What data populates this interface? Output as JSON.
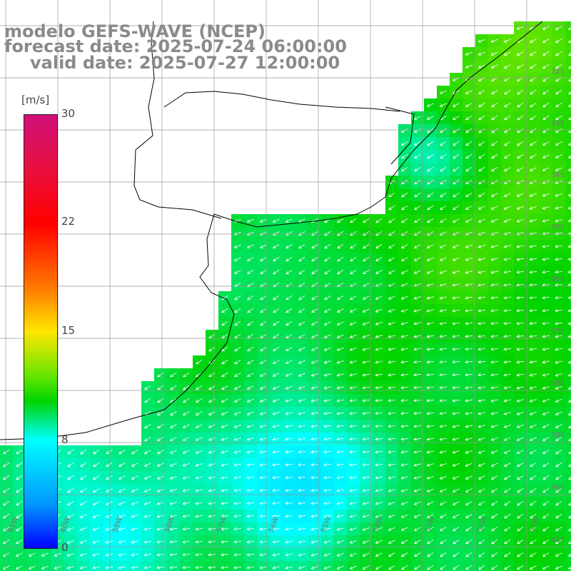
{
  "title": {
    "model": "modelo GEFS-WAVE (NCEP)",
    "forecast": "forecast date: 2025-07-24 06:00:00",
    "valid": "valid date: 2025-07-27 12:00:00"
  },
  "colorbar": {
    "unit": "[m/s]",
    "ticks": [
      "30",
      "22",
      "15",
      "8",
      "0"
    ],
    "tick_values": [
      30,
      22,
      15,
      8,
      0
    ],
    "colors": [
      "#0000ff",
      "#0096ff",
      "#00ffff",
      "#00d400",
      "#6ae600",
      "#ffe600",
      "#ff7a00",
      "#ff0000",
      "#e81040",
      "#d0107a"
    ]
  },
  "lat_labels": [
    "32S",
    "33S",
    "34S",
    "35S",
    "36S",
    "37S",
    "38S",
    "39S",
    "40S",
    "41S"
  ],
  "lon_labels": [
    "61W",
    "60W",
    "59W",
    "58W",
    "57W",
    "56W",
    "55W",
    "54W",
    "53W",
    "52W",
    "51W"
  ],
  "map": {
    "variable": "wind speed",
    "arrow_color": "#ffffff",
    "land_color": "#ffffff",
    "coastline_color": "#000000",
    "grid_color": "#999999"
  }
}
